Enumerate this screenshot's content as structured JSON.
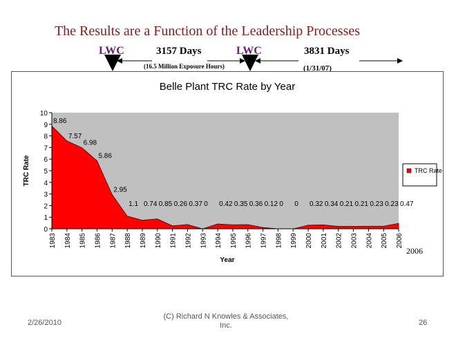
{
  "slide": {
    "title": "The Results are a Function of the Leadership Processes",
    "lwc_1": "LWC",
    "days_1": "3157 Days",
    "exposure": "(16.5 Million Exposure Hours)",
    "lwc_2": "LWC",
    "days_2": "3831 Days",
    "date_note": "(1/31/07)",
    "year_note": "2006"
  },
  "footer": {
    "date": "2/26/2010",
    "copyright": "(C) Richard N Knowles & Associates, Inc.",
    "page": "26"
  },
  "colors": {
    "series": "#ff0000",
    "plot_bg": "#c0c0c0",
    "title": "#8b1a1a",
    "lwc": "#6a1a7a"
  },
  "chart_data": {
    "type": "area",
    "title": "Belle Plant TRC Rate by Year",
    "xlabel": "Year",
    "ylabel": "TRC Rate",
    "ylim": [
      0,
      10
    ],
    "yticks": [
      "0",
      "1",
      "2",
      "3",
      "4",
      "5",
      "6",
      "7",
      "8",
      "9",
      "10"
    ],
    "grid": false,
    "legend": "right",
    "x": [
      "1983",
      "1984",
      "1985",
      "1986",
      "1987",
      "1988",
      "1989",
      "1990",
      "1991",
      "1992",
      "1993",
      "1994",
      "1995",
      "1996",
      "1997",
      "1998",
      "1999",
      "2000",
      "2001",
      "2002",
      "2003",
      "2004",
      "2005",
      "2006"
    ],
    "series": [
      {
        "name": "TRC Rate",
        "values": [
          8.86,
          7.57,
          6.98,
          5.86,
          2.95,
          1.1,
          0.74,
          0.85,
          0.26,
          0.37,
          0,
          0.42,
          0.35,
          0.36,
          0.12,
          0,
          0,
          0.32,
          0.34,
          0.21,
          0.21,
          0.23,
          0.23,
          0.47
        ],
        "labels": [
          "8.86",
          "7.57",
          "6.98",
          "5.86",
          "2.95",
          "1.1",
          "0.74",
          "0.85",
          "0.26",
          "0.37",
          "0",
          "0.42",
          "0.35",
          "0.36",
          "0.12",
          "0",
          "0",
          "0.32",
          "0.34",
          "0.21",
          "0.21",
          "0.23",
          "0.23",
          "0.47"
        ],
        "color": "#ff0000"
      }
    ]
  }
}
